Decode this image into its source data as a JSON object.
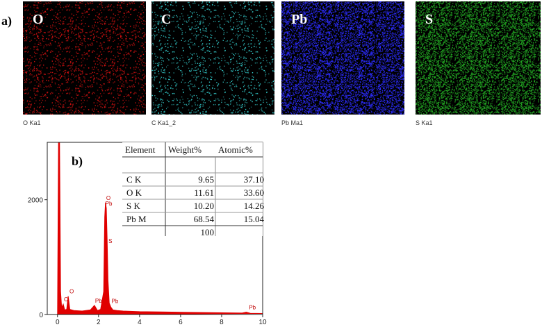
{
  "panel_a": {
    "label": "a)",
    "maps": [
      {
        "label": "O",
        "caption": "O Ka1",
        "color": "#d01010"
      },
      {
        "label": "C",
        "caption": "C Ka1_2",
        "color": "#33cccc"
      },
      {
        "label": "Pb",
        "caption": "Pb Ma1",
        "color": "#2b2bff"
      },
      {
        "label": "S",
        "caption": "S Ka1",
        "color": "#22aa22"
      }
    ]
  },
  "chart_data": {
    "type": "area",
    "label": "b)",
    "xlim": [
      -0.5,
      10
    ],
    "ylim": [
      0,
      3000
    ],
    "xticks": [
      0,
      2,
      4,
      6,
      8,
      10
    ],
    "yticks": [
      0,
      2000
    ],
    "series": [
      {
        "color": "#e00000",
        "x": [
          0,
          0.05,
          0.1,
          0.15,
          0.2,
          0.28,
          0.35,
          0.45,
          0.52,
          0.6,
          0.8,
          1.2,
          1.6,
          1.8,
          1.95,
          2.1,
          2.25,
          2.3,
          2.34,
          2.38,
          2.42,
          2.46,
          2.52,
          2.6,
          2.7,
          2.9,
          3.2,
          4,
          5,
          6,
          7,
          8,
          9,
          9.2,
          9.4,
          10
        ],
        "values": [
          0,
          3000,
          3000,
          400,
          120,
          180,
          80,
          90,
          320,
          90,
          70,
          60,
          80,
          160,
          70,
          90,
          400,
          1700,
          1950,
          1850,
          1300,
          600,
          200,
          130,
          80,
          70,
          60,
          50,
          45,
          40,
          35,
          30,
          25,
          40,
          22,
          18
        ]
      }
    ],
    "annotations": [
      {
        "text": "C",
        "x": 0.28,
        "y": 180
      },
      {
        "text": "O",
        "x": 0.55,
        "y": 320
      },
      {
        "text": "Pb",
        "x": 1.8,
        "y": 160
      },
      {
        "text": "O",
        "x": 2.34,
        "y": 1950
      },
      {
        "text": "Pb",
        "x": 2.3,
        "y": 1850
      },
      {
        "text": "S",
        "x": 2.45,
        "y": 1200
      },
      {
        "text": "Pb",
        "x": 2.6,
        "y": 150
      },
      {
        "text": "Pb",
        "x": 9.3,
        "y": 40
      }
    ]
  },
  "table": {
    "header": [
      "Element",
      "Weight%",
      "Atomic%"
    ],
    "rows": [
      [
        "C K",
        "9.65",
        "37.10"
      ],
      [
        "O K",
        "11.61",
        "33.60"
      ],
      [
        "S K",
        "10.20",
        "14.26"
      ],
      [
        "Pb M",
        "68.54",
        "15.04"
      ]
    ],
    "total": "100"
  }
}
